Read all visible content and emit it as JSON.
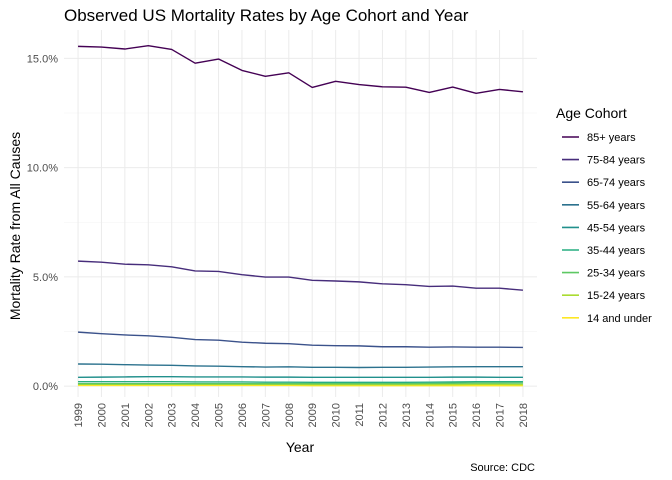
{
  "chart_data": {
    "type": "line",
    "title": "Observed US Mortality Rates by Age Cohort and Year",
    "xlabel": "Year",
    "ylabel": "Mortality Rate from All Causes",
    "caption": "Source: CDC",
    "legend_title": "Age Cohort",
    "legend_position": "right",
    "grid": true,
    "x": [
      1999,
      2000,
      2001,
      2002,
      2003,
      2004,
      2005,
      2006,
      2007,
      2008,
      2009,
      2010,
      2011,
      2012,
      2013,
      2014,
      2015,
      2016,
      2017,
      2018
    ],
    "xlim": [
      1998.4,
      2018.6
    ],
    "ylim": [
      -0.005,
      0.163
    ],
    "yticks": [
      0,
      0.05,
      0.1,
      0.15
    ],
    "ytick_labels": [
      "0.0%",
      "5.0%",
      "10.0%",
      "15.0%"
    ],
    "series": [
      {
        "name": "85+ years",
        "color": "#440154",
        "values": [
          0.1555,
          0.1552,
          0.1543,
          0.1558,
          0.1541,
          0.1478,
          0.1497,
          0.1445,
          0.1418,
          0.1434,
          0.1367,
          0.1395,
          0.138,
          0.137,
          0.1368,
          0.1344,
          0.1369,
          0.134,
          0.1358,
          0.1347
        ]
      },
      {
        "name": "75-84 years",
        "color": "#472D7B",
        "values": [
          0.0572,
          0.0567,
          0.0558,
          0.0555,
          0.0546,
          0.0527,
          0.0525,
          0.051,
          0.0499,
          0.0499,
          0.0484,
          0.0481,
          0.0477,
          0.0468,
          0.0464,
          0.0456,
          0.0458,
          0.0448,
          0.0448,
          0.0439
        ]
      },
      {
        "name": "65-74 years",
        "color": "#3B528B",
        "values": [
          0.0247,
          0.024,
          0.0234,
          0.023,
          0.0223,
          0.0213,
          0.021,
          0.0201,
          0.0196,
          0.0194,
          0.0187,
          0.0185,
          0.0184,
          0.018,
          0.018,
          0.0178,
          0.0179,
          0.0178,
          0.0178,
          0.0177
        ]
      },
      {
        "name": "55-64 years",
        "color": "#2C728E",
        "values": [
          0.0101,
          0.01,
          0.0098,
          0.0096,
          0.0095,
          0.0092,
          0.0091,
          0.0089,
          0.0087,
          0.0088,
          0.0086,
          0.0086,
          0.0085,
          0.0086,
          0.0086,
          0.0087,
          0.0088,
          0.0089,
          0.0089,
          0.0089
        ]
      },
      {
        "name": "45-54 years",
        "color": "#21908C",
        "values": [
          0.004,
          0.0041,
          0.0042,
          0.0043,
          0.0043,
          0.0042,
          0.0042,
          0.0042,
          0.0041,
          0.0041,
          0.004,
          0.004,
          0.004,
          0.004,
          0.004,
          0.004,
          0.0041,
          0.0041,
          0.004,
          0.004
        ]
      },
      {
        "name": "35-44 years",
        "color": "#27AD81",
        "values": [
          0.002,
          0.002,
          0.002,
          0.002,
          0.002,
          0.0019,
          0.0019,
          0.0019,
          0.0018,
          0.0018,
          0.0017,
          0.0017,
          0.0017,
          0.0017,
          0.0017,
          0.0018,
          0.0019,
          0.002,
          0.002,
          0.002
        ]
      },
      {
        "name": "25-34 years",
        "color": "#5DC863",
        "values": [
          0.0011,
          0.0011,
          0.0011,
          0.0011,
          0.0011,
          0.0011,
          0.0011,
          0.0011,
          0.0011,
          0.0011,
          0.0011,
          0.0011,
          0.0011,
          0.0011,
          0.0011,
          0.0012,
          0.0013,
          0.0014,
          0.0014,
          0.0014
        ]
      },
      {
        "name": "15-24 years",
        "color": "#AADC32",
        "values": [
          0.0008,
          0.0008,
          0.0008,
          0.0008,
          0.0008,
          0.0008,
          0.0008,
          0.0008,
          0.0008,
          0.0008,
          0.0007,
          0.0007,
          0.0007,
          0.0007,
          0.0007,
          0.0007,
          0.0007,
          0.0008,
          0.0008,
          0.0007
        ]
      },
      {
        "name": "14 and under",
        "color": "#FDE725",
        "values": [
          0.0003,
          0.0003,
          0.0003,
          0.0003,
          0.0003,
          0.0003,
          0.0003,
          0.0003,
          0.0003,
          0.0003,
          0.0002,
          0.0002,
          0.0002,
          0.0002,
          0.0002,
          0.0002,
          0.0002,
          0.0002,
          0.0002,
          0.0002
        ]
      }
    ]
  }
}
